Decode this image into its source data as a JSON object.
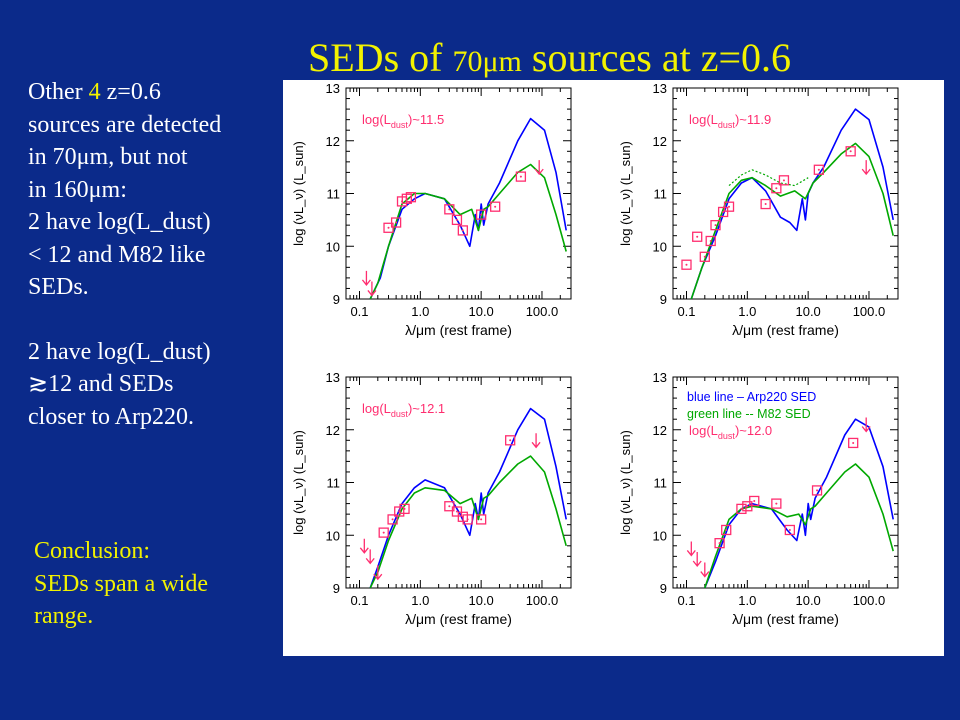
{
  "slide": {
    "title_main": "SEDs of ",
    "title_small": "70μm",
    "title_end": " sources at z=0.6",
    "left_text": {
      "l1_a": "Other ",
      "l1_b": "4",
      "l1_c": " z=0.6",
      "l2": "sources are detected",
      "l3": "in 70μm, but not",
      "l4": "in 160μm:",
      "l5": "2 have log(L_dust)",
      "l6": "< 12 and M82 like",
      "l7": "SEDs.",
      "l8": "2 have log(L_dust)",
      "l9": "≳12 and  SEDs",
      "l10": "closer to Arp220."
    },
    "conclusion": {
      "l1": "Conclusion:",
      "l2": "SEDs span a wide",
      "l3": "range."
    }
  },
  "colors": {
    "background": "#0b2a8a",
    "title": "#f2f200",
    "body_text": "#ffffff",
    "arp220_line": "#0000ff",
    "m82_line": "#00a800",
    "data_points": "#ff2d6f"
  },
  "chart_data": [
    {
      "type": "line",
      "panel": "top-left",
      "xlabel": "λ/μm (rest frame)",
      "ylabel": "log (νL_ν) (L_sun)",
      "x_scale": "log",
      "xlim": [
        0.06,
        300
      ],
      "ylim": [
        9,
        13
      ],
      "xticks": [
        "0.1",
        "1.0",
        "10.0",
        "100.0"
      ],
      "yticks": [
        "9",
        "10",
        "11",
        "12",
        "13"
      ],
      "annotation": "log(L_dust)~11.5",
      "series": [
        {
          "color": "blue",
          "x": [
            0.15,
            0.22,
            0.3,
            0.5,
            0.8,
            1.2,
            2.5,
            4.5,
            6.5,
            8,
            9,
            10,
            11,
            13,
            20,
            40,
            65,
            110,
            170,
            250
          ],
          "y": [
            9.0,
            9.4,
            10.0,
            10.7,
            10.9,
            11.0,
            10.9,
            10.4,
            10.0,
            10.6,
            10.3,
            10.8,
            10.4,
            10.8,
            11.2,
            12.0,
            12.42,
            12.2,
            11.4,
            10.3
          ]
        },
        {
          "color": "green",
          "x": [
            0.15,
            0.2,
            0.3,
            0.5,
            0.8,
            1.2,
            2.5,
            4.5,
            7,
            9,
            11,
            13,
            20,
            40,
            65,
            110,
            170,
            250
          ],
          "y": [
            9.0,
            9.3,
            10.0,
            10.8,
            11.0,
            11.0,
            10.9,
            10.6,
            10.7,
            10.3,
            10.7,
            10.75,
            11.0,
            11.4,
            11.55,
            11.3,
            10.6,
            9.9
          ]
        }
      ],
      "points": {
        "x": [
          0.3,
          0.4,
          0.5,
          0.6,
          0.7,
          3.0,
          4.0,
          5.0,
          10.0,
          17.0,
          45.0
        ],
        "y": [
          10.35,
          10.45,
          10.85,
          10.9,
          10.93,
          10.7,
          10.5,
          10.3,
          10.6,
          10.75,
          11.32
        ]
      },
      "upper_limits": {
        "x": [
          0.13,
          0.16,
          90.0
        ],
        "y": [
          9.4,
          9.2,
          11.5
        ]
      }
    },
    {
      "type": "line",
      "panel": "top-right",
      "xlabel": "λ/μm (rest frame)",
      "ylabel": "log (νL_ν) (L_sun)",
      "x_scale": "log",
      "xlim": [
        0.06,
        300
      ],
      "ylim": [
        9,
        13
      ],
      "xticks": [
        "0.1",
        "1.0",
        "10.0",
        "100.0"
      ],
      "yticks": [
        "9",
        "10",
        "11",
        "12",
        "13"
      ],
      "annotation": "log(L_dust)~11.9",
      "series": [
        {
          "color": "blue",
          "x": [
            0.12,
            0.18,
            0.3,
            0.5,
            0.8,
            1.2,
            2.0,
            3.5,
            5.0,
            6.5,
            8,
            9,
            10,
            12,
            18,
            35,
            60,
            100,
            170,
            250
          ],
          "y": [
            9.0,
            9.6,
            10.2,
            10.9,
            11.2,
            11.3,
            11.05,
            10.55,
            10.45,
            10.3,
            10.9,
            10.5,
            11.0,
            11.2,
            11.5,
            12.2,
            12.6,
            12.4,
            11.5,
            10.5
          ]
        },
        {
          "color": "green",
          "x": [
            0.12,
            0.18,
            0.3,
            0.5,
            0.8,
            1.2,
            2.0,
            3.5,
            6,
            9,
            12,
            18,
            35,
            60,
            100,
            170,
            250
          ],
          "y": [
            9.0,
            9.6,
            10.3,
            11.0,
            11.25,
            11.3,
            11.15,
            10.95,
            11.05,
            10.9,
            11.2,
            11.4,
            11.75,
            11.95,
            11.7,
            11.0,
            10.2
          ]
        },
        {
          "color": "green-dotted",
          "x": [
            0.5,
            0.8,
            1.2,
            2.0,
            3.5,
            6,
            10
          ],
          "y": [
            11.15,
            11.35,
            11.45,
            11.35,
            11.2,
            11.15,
            11.3
          ]
        }
      ],
      "points": {
        "x": [
          0.1,
          0.15,
          0.2,
          0.25,
          0.3,
          0.4,
          0.5,
          2.0,
          3.0,
          4.0,
          15.0,
          50.0
        ],
        "y": [
          9.65,
          10.18,
          9.8,
          10.1,
          10.4,
          10.65,
          10.75,
          10.8,
          11.1,
          11.25,
          11.45,
          11.8
        ]
      },
      "upper_limits": {
        "x": [
          90.0
        ],
        "y": [
          11.5
        ]
      }
    },
    {
      "type": "line",
      "panel": "bottom-left",
      "xlabel": "λ/μm (rest frame)",
      "ylabel": "log (νL_ν) (L_sun)",
      "x_scale": "log",
      "xlim": [
        0.06,
        300
      ],
      "ylim": [
        9,
        13
      ],
      "xticks": [
        "0.1",
        "1.0",
        "10.0",
        "100.0"
      ],
      "yticks": [
        "9",
        "10",
        "11",
        "12",
        "13"
      ],
      "annotation": "log(L_dust)~12.1",
      "series": [
        {
          "color": "blue",
          "x": [
            0.15,
            0.2,
            0.3,
            0.5,
            0.8,
            1.2,
            2.5,
            4.5,
            6.5,
            8,
            9,
            10,
            11,
            13,
            20,
            40,
            65,
            110,
            170,
            250
          ],
          "y": [
            9.0,
            9.4,
            10.0,
            10.6,
            10.9,
            11.05,
            10.9,
            10.4,
            10.0,
            10.6,
            10.3,
            10.8,
            10.4,
            10.8,
            11.2,
            12.0,
            12.4,
            12.2,
            11.3,
            10.3
          ]
        },
        {
          "color": "green",
          "x": [
            0.15,
            0.2,
            0.3,
            0.5,
            0.8,
            1.2,
            2.5,
            4.5,
            7,
            9,
            11,
            13,
            20,
            40,
            65,
            110,
            170,
            250
          ],
          "y": [
            9.0,
            9.3,
            9.9,
            10.5,
            10.8,
            10.9,
            10.85,
            10.6,
            10.7,
            10.3,
            10.7,
            10.75,
            11.0,
            11.35,
            11.5,
            11.2,
            10.5,
            9.8
          ]
        }
      ],
      "points": {
        "x": [
          0.25,
          0.35,
          0.45,
          0.55,
          3.0,
          4.0,
          5.0,
          6.0,
          10.0,
          30.0
        ],
        "y": [
          10.05,
          10.3,
          10.45,
          10.5,
          10.55,
          10.45,
          10.35,
          10.3,
          10.3,
          11.8
        ]
      },
      "upper_limits": {
        "x": [
          0.12,
          0.15,
          0.2,
          80.0
        ],
        "y": [
          9.8,
          9.6,
          9.3,
          11.8
        ]
      }
    },
    {
      "type": "line",
      "panel": "bottom-right",
      "xlabel": "λ/μm (rest frame)",
      "ylabel": "log (νL_ν) (L_sun)",
      "x_scale": "log",
      "xlim": [
        0.06,
        300
      ],
      "ylim": [
        9,
        13
      ],
      "xticks": [
        "0.1",
        "1.0",
        "10.0",
        "100.0"
      ],
      "yticks": [
        "9",
        "10",
        "11",
        "12",
        "13"
      ],
      "annotation": "log(L_dust)~12.0",
      "legend_blue": "blue line – Arp220 SED",
      "legend_green": "green line -- M82 SED",
      "series": [
        {
          "color": "blue",
          "x": [
            0.2,
            0.3,
            0.5,
            0.8,
            1.2,
            2.5,
            4.5,
            6.5,
            8,
            9,
            10,
            11,
            13,
            20,
            40,
            60,
            100,
            170,
            250
          ],
          "y": [
            9.0,
            9.5,
            10.2,
            10.5,
            10.6,
            10.5,
            10.1,
            9.9,
            10.4,
            10.0,
            10.6,
            10.3,
            10.7,
            11.1,
            11.9,
            12.2,
            12.05,
            11.3,
            10.3
          ]
        },
        {
          "color": "green",
          "x": [
            0.2,
            0.3,
            0.5,
            0.8,
            1.2,
            2.5,
            4.5,
            7,
            9,
            11,
            13,
            20,
            40,
            60,
            100,
            170,
            250
          ],
          "y": [
            9.0,
            9.6,
            10.3,
            10.5,
            10.55,
            10.5,
            10.35,
            10.4,
            10.2,
            10.5,
            10.55,
            10.8,
            11.2,
            11.35,
            11.1,
            10.4,
            9.7
          ]
        }
      ],
      "points": {
        "x": [
          0.35,
          0.45,
          0.8,
          1.0,
          1.3,
          3.0,
          5.0,
          14.0,
          55.0
        ],
        "y": [
          9.85,
          10.1,
          10.5,
          10.55,
          10.65,
          10.6,
          10.1,
          10.85,
          11.75
        ]
      },
      "upper_limits": {
        "x": [
          0.12,
          0.15,
          0.2,
          90.0
        ],
        "y": [
          9.75,
          9.55,
          9.35,
          12.1
        ]
      }
    }
  ]
}
